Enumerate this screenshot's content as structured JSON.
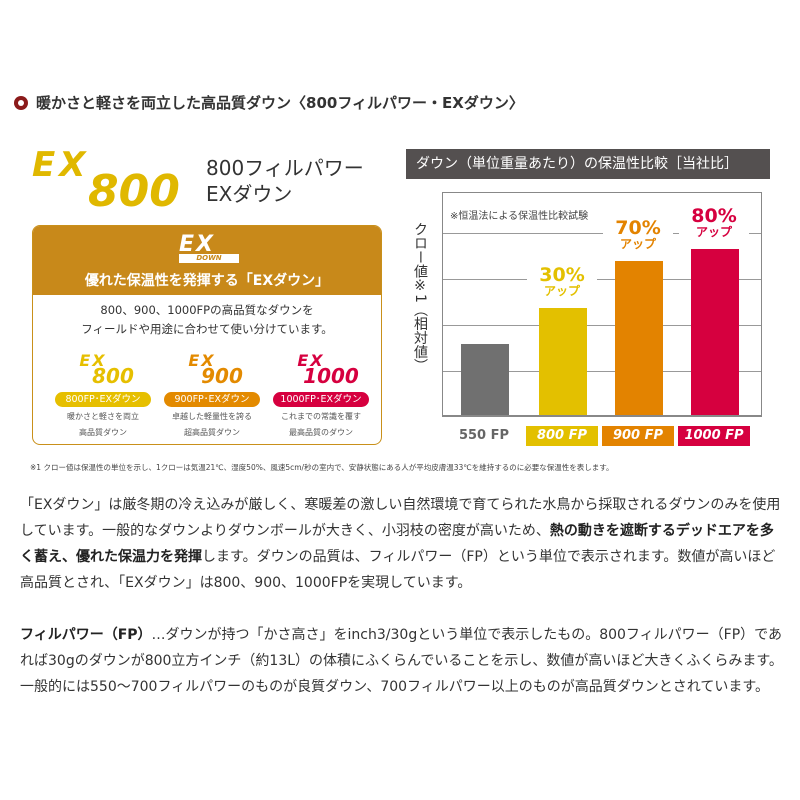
{
  "heading": "暖かさと軽さを両立した高品質ダウン〈800フィルパワー・EXダウン〉",
  "hero": {
    "logo_ex": "EX",
    "logo_num": "800",
    "name_line1": "800フィルパワー",
    "name_line2": "EXダウン",
    "color": "#e0b800"
  },
  "box": {
    "logo_ex": "EX",
    "logo_down": "DOWN",
    "title": "優れた保温性を発揮する「EXダウン」",
    "desc_line1": "800、900、1000FPの高品質なダウンを",
    "desc_line2": "フィールドや用途に合わせて使い分けています。",
    "items": [
      {
        "ex": "EX",
        "num": "800",
        "pill": "800FP･EXダウン",
        "d1": "暖かさと軽さを両立",
        "d2": "高品質ダウン",
        "color": "#e6bf00"
      },
      {
        "ex": "EX",
        "num": "900",
        "pill": "900FP･EXダウン",
        "d1": "卓越した軽量性を誇る",
        "d2": "超高品質ダウン",
        "color": "#e38a00"
      },
      {
        "ex": "EX",
        "num": "1000",
        "pill": "1000FP･EXダウン",
        "d1": "これまでの常識を覆す",
        "d2": "最高品質のダウン",
        "color": "#d6003f"
      }
    ]
  },
  "chart_data": {
    "type": "bar",
    "title": "ダウン（単位重量あたり）の保温性比較［当社比］",
    "note": "※恒温法による保温性比較試験",
    "ylabel": "クロー値※1（相対値）",
    "categories": [
      "550 FP",
      "800 FP",
      "900 FP",
      "1000 FP"
    ],
    "values": [
      100,
      130,
      170,
      180
    ],
    "labels": [
      {
        "pct": "",
        "up": ""
      },
      {
        "pct": "30%",
        "up": "アップ"
      },
      {
        "pct": "70%",
        "up": "アップ"
      },
      {
        "pct": "80%",
        "up": "アップ"
      }
    ],
    "colors": [
      "#707070",
      "#e3c000",
      "#e38300",
      "#d6003f"
    ],
    "grid": true
  },
  "footnote": "※1 クロー値は保温性の単位を示し、1クローは気温21℃、湿度50%、風速5cm/秒の室内で、安静状態にある人が平均皮膚温33℃を維持するのに必要な保温性を表します。",
  "para1": {
    "a": "「EXダウン」は厳冬期の冷え込みが厳しく、寒暖差の激しい自然環境で育てられた水鳥から採取されるダウンのみを使用しています。一般的なダウンよりダウンボールが大きく、小羽枝の密度が高いため、",
    "b": "熱の動きを遮断するデッドエアを多く蓄え、優れた保温力を発揮",
    "c": "します。ダウンの品質は、フィルパワー（FP）という単位で表示されます。数値が高いほど高品質とされ、「EXダウン」は800、900、1000FPを実現しています。"
  },
  "para2": {
    "a": "フィルパワー（FP）",
    "b": "…ダウンが持つ「かさ高さ」をinch3/30gという単位で表示したもの。800フィルパワー（FP）であれば30gのダウンが800立方インチ（約13L）の体積にふくらんでいることを示し、数値が高いほど大きくふくらみます。一般的には550～700フィルパワーのものが良質ダウン、700フィルパワー以上のものが高品質ダウンとされています。"
  }
}
